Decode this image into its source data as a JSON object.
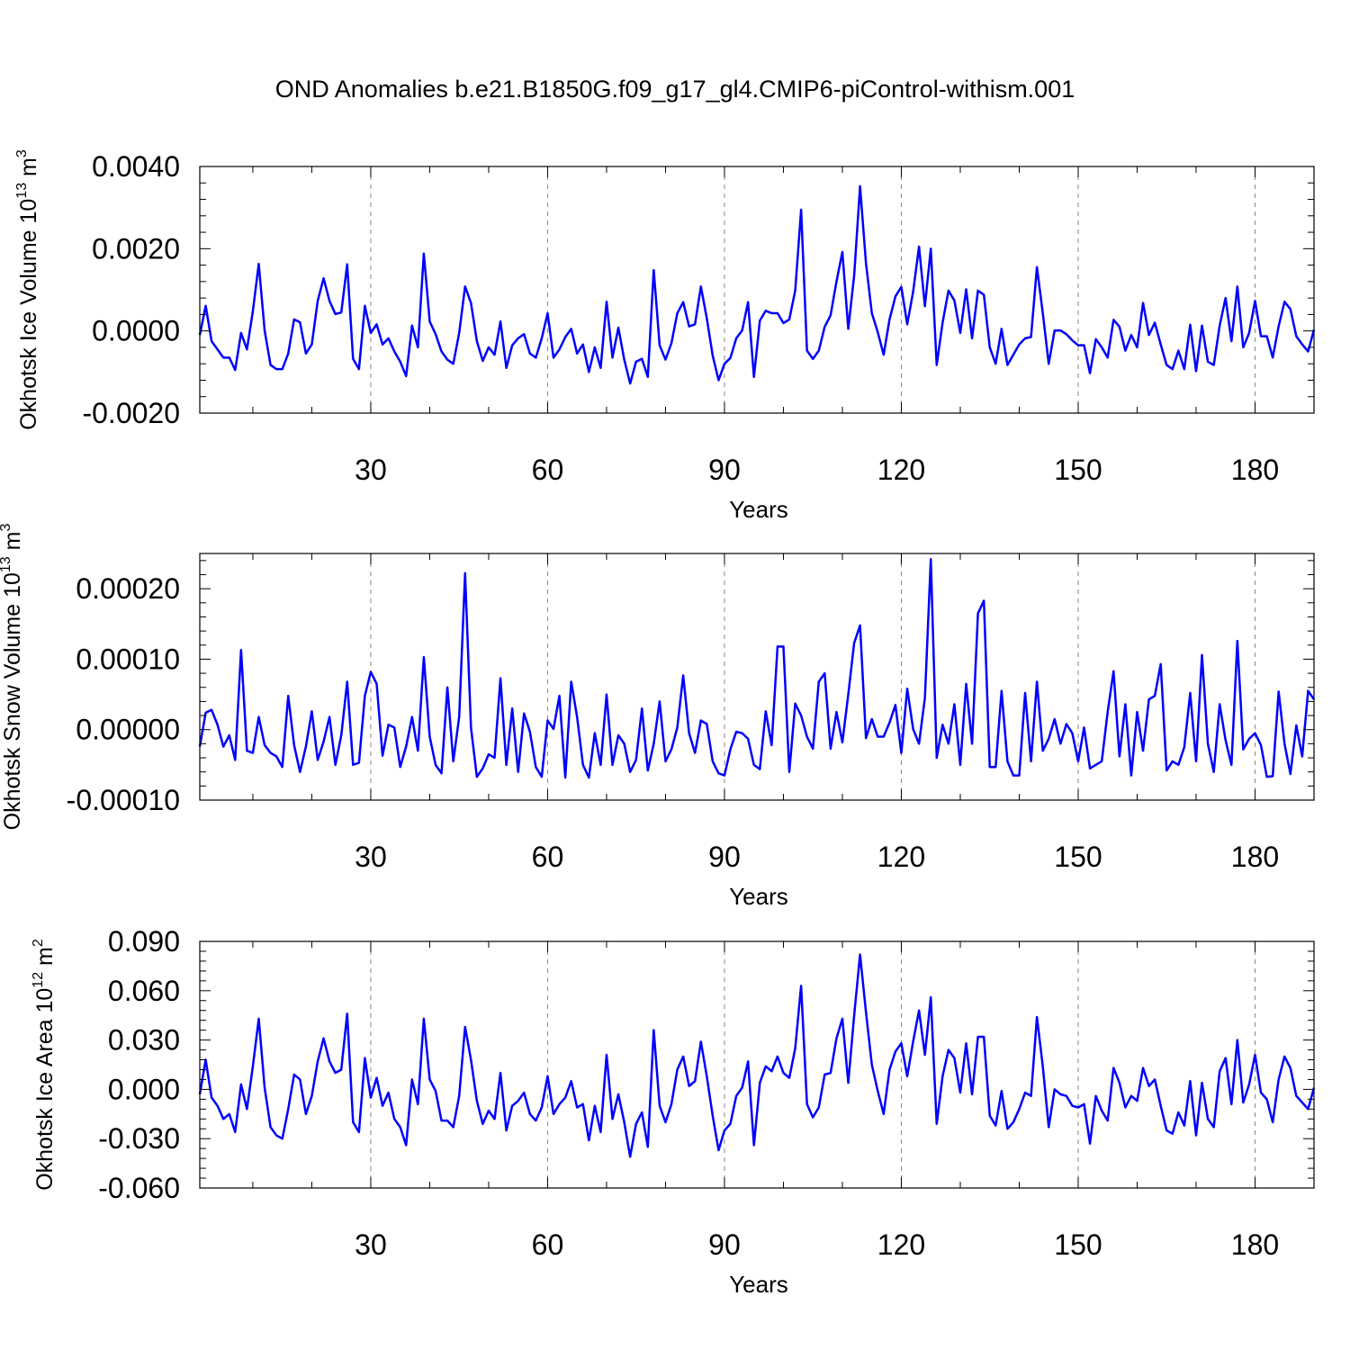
{
  "title": "OND Anomalies b.e21.B1850G.f09_g17_gl4.CMIP6-piControl-withism.001",
  "colors": {
    "line": "#0000ff",
    "axis": "#000000",
    "grid": "#888888"
  },
  "chart_data": [
    {
      "type": "line",
      "title": "OND Anomalies b.e21.B1850G.f09_g17_gl4.CMIP6-piControl-withism.001",
      "xlabel": "Years",
      "ylabel_main": "Okhotsk Ice Volume 10",
      "ylabel_exp": "13",
      "ylabel_unit": " m",
      "ylabel_unit_exp": "3",
      "xlim": [
        1,
        190
      ],
      "ylim": [
        -0.002,
        0.004
      ],
      "xticks": [
        30,
        60,
        90,
        120,
        150,
        180
      ],
      "xtick_labels": [
        "30",
        "60",
        "90",
        "120",
        "150",
        "180"
      ],
      "yticks": [
        -0.002,
        0.0,
        0.002,
        0.004
      ],
      "ytick_labels": [
        "-0.0020",
        "0.0000",
        "0.0020",
        "0.0040"
      ],
      "grid": "vertical dashed at x ticks",
      "series": [
        {
          "values": [
            -0.0001,
            0.00061,
            -0.00025,
            -0.00045,
            -0.00065,
            -0.00065,
            -0.00095,
            -5e-05,
            -0.00045,
            0.00048,
            0.00163,
            1e-05,
            -0.00083,
            -0.00093,
            -0.00093,
            -0.00055,
            0.00028,
            0.00021,
            -0.00055,
            -0.00033,
            0.00073,
            0.00128,
            0.00073,
            0.00041,
            0.00045,
            0.00162,
            -0.00068,
            -0.00093,
            0.00061,
            -5e-05,
            0.00016,
            -0.00033,
            -0.00018,
            -0.0005,
            -0.00075,
            -0.0011,
            0.00013,
            -0.0004,
            0.00188,
            0.00023,
            -8e-05,
            -0.0005,
            -0.0007,
            -0.0008,
            -5e-05,
            0.00108,
            0.00068,
            -0.00025,
            -0.00073,
            -0.0004,
            -0.00058,
            0.00023,
            -0.0009,
            -0.00035,
            -0.00018,
            -8e-05,
            -0.00055,
            -0.00065,
            -0.00018,
            0.00043,
            -0.00065,
            -0.00045,
            -0.00015,
            5e-05,
            -0.00055,
            -0.00033,
            -0.001,
            -0.0004,
            -0.0009,
            0.00071,
            -0.00065,
            8e-05,
            -0.0007,
            -0.00128,
            -0.00075,
            -0.00068,
            -0.00112,
            0.00148,
            -0.00035,
            -0.0007,
            -0.0003,
            0.00043,
            0.0007,
            0.00011,
            0.00016,
            0.00108,
            0.00031,
            -0.0006,
            -0.0012,
            -0.0008,
            -0.00066,
            -0.00018,
            1e-05,
            0.0007,
            -0.00112,
            0.00025,
            0.00049,
            0.00043,
            0.00043,
            0.00019,
            0.00028,
            0.00098,
            0.00295,
            -0.00048,
            -0.00068,
            -0.00048,
            0.0001,
            0.00038,
            0.0012,
            0.00192,
            5e-05,
            0.00135,
            0.00352,
            0.00165,
            0.00043,
            -3e-05,
            -0.00058,
            0.00028,
            0.00084,
            0.00107,
            0.00016,
            0.00095,
            0.00205,
            0.0006,
            0.002,
            -0.00083,
            0.0002,
            0.00098,
            0.00074,
            -5e-05,
            0.00101,
            -0.00018,
            0.00098,
            0.00088,
            -0.0004,
            -0.0008,
            5e-05,
            -0.00083,
            -0.00058,
            -0.00033,
            -0.00018,
            -0.00015,
            0.00155,
            0.00043,
            -0.0008,
            1e-05,
            1e-05,
            -8e-05,
            -0.00023,
            -0.00035,
            -0.00035,
            -0.00103,
            -0.0002,
            -0.0004,
            -0.00065,
            0.00027,
            0.0001,
            -0.00048,
            -0.0001,
            -0.0004,
            0.00068,
            -0.0001,
            0.0002,
            -0.00033,
            -0.00083,
            -0.00093,
            -0.00048,
            -0.00093,
            0.00015,
            -0.00098,
            0.00013,
            -0.00075,
            -0.00083,
            0.00013,
            0.0008,
            -0.00025,
            0.00108,
            -0.0004,
            -5e-05,
            0.00073,
            -0.00013,
            -0.00013,
            -0.00065,
            0.00011,
            0.00071,
            0.00053,
            -0.00013,
            -0.00033,
            -0.0005,
            3e-05
          ]
        }
      ]
    },
    {
      "type": "line",
      "xlabel": "Years",
      "ylabel_main": "Okhotsk Snow Volume 10",
      "ylabel_exp": "13",
      "ylabel_unit": " m",
      "ylabel_unit_exp": "3",
      "xlim": [
        1,
        190
      ],
      "ylim": [
        -0.0001,
        0.00025
      ],
      "xticks": [
        30,
        60,
        90,
        120,
        150,
        180
      ],
      "xtick_labels": [
        "30",
        "60",
        "90",
        "120",
        "150",
        "180"
      ],
      "yticks": [
        -0.0001,
        0.0,
        0.0001,
        0.0002
      ],
      "ytick_labels": [
        "-0.00010",
        "0.00000",
        "0.00010",
        "0.00020"
      ],
      "grid": "vertical dashed at x ticks",
      "series": [
        {
          "values": [
            -2.4e-05,
            2.4e-05,
            2.8e-05,
            7e-06,
            -2.4e-05,
            -8e-06,
            -4.3e-05,
            0.000113,
            -3e-05,
            -3.3e-05,
            1.8e-05,
            -2.2e-05,
            -3.3e-05,
            -3.8e-05,
            -5.3e-05,
            4.8e-05,
            -2.2e-05,
            -6e-05,
            -2.4e-05,
            2.6e-05,
            -4.3e-05,
            -1.7e-05,
            1.8e-05,
            -5e-05,
            -8e-06,
            6.8e-05,
            -5e-05,
            -4.7e-05,
            4.8e-05,
            8.2e-05,
            6.5e-05,
            -3.7e-05,
            7e-06,
            3e-06,
            -5.3e-05,
            -2.4e-05,
            1.8e-05,
            -3e-05,
            0.000103,
            -1e-05,
            -5e-05,
            -6.2e-05,
            6e-05,
            -4.5e-05,
            1.8e-05,
            0.000222,
            3e-06,
            -6.7e-05,
            -5.5e-05,
            -3.5e-05,
            -4e-05,
            7.3e-05,
            -5e-05,
            3e-05,
            -6e-05,
            2.3e-05,
            -3e-06,
            -5.3e-05,
            -6.7e-05,
            1.3e-05,
            1e-06,
            4.8e-05,
            -6.8e-05,
            6.8e-05,
            1.8e-05,
            -5e-05,
            -6.8e-05,
            -5e-06,
            -5e-05,
            5e-05,
            -5e-05,
            -8e-06,
            -2e-05,
            -6e-05,
            -4.3e-05,
            3e-05,
            -5.8e-05,
            -2e-05,
            4e-05,
            -4.5e-05,
            -2.8e-05,
            3e-06,
            7.7e-05,
            -5e-06,
            -3.3e-05,
            1.3e-05,
            8e-06,
            -4.5e-05,
            -6.2e-05,
            -6.5e-05,
            -2.8e-05,
            -3e-06,
            -5e-06,
            -1.3e-05,
            -5e-05,
            -5.6e-05,
            2.6e-05,
            -2.2e-05,
            0.000118,
            0.000118,
            -6e-05,
            3.7e-05,
            2e-05,
            -1e-05,
            -2.7e-05,
            6.8e-05,
            8e-05,
            -2.7e-05,
            2.5e-05,
            -1.8e-05,
            5e-05,
            0.000123,
            0.000148,
            -1.2e-05,
            1.5e-05,
            -1e-05,
            -1e-05,
            1e-05,
            3.5e-05,
            -3.3e-05,
            5.8e-05,
            1e-06,
            -2e-05,
            4.5e-05,
            0.000242,
            -4e-05,
            7e-06,
            -2e-05,
            3.6e-05,
            -5e-05,
            6.5e-05,
            -2e-05,
            0.000165,
            0.000183,
            -5.3e-05,
            -5.3e-05,
            5.5e-05,
            -4.5e-05,
            -6.5e-05,
            -6.5e-05,
            5.2e-05,
            -4.5e-05,
            6.8e-05,
            -3e-05,
            -1.3e-05,
            1.5e-05,
            -2e-05,
            8e-06,
            -5e-06,
            -4.5e-05,
            3e-06,
            -5.5e-05,
            -5e-05,
            -4.5e-05,
            2.5e-05,
            8.3e-05,
            -3.8e-05,
            3.6e-05,
            -6.5e-05,
            2.5e-05,
            -3e-05,
            4.3e-05,
            4.8e-05,
            9.3e-05,
            -5.8e-05,
            -4.5e-05,
            -5e-05,
            -2.5e-05,
            5.2e-05,
            -4.5e-05,
            0.000106,
            -2e-05,
            -6e-05,
            3.6e-05,
            -1.5e-05,
            -5e-05,
            0.000126,
            -2.8e-05,
            -1.3e-05,
            -5e-06,
            -2.2e-05,
            -6.7e-05,
            -6.6e-05,
            5.4e-05,
            -2e-05,
            -6.3e-05,
            6e-06,
            -3.8e-05,
            5.5e-05,
            4.3e-05
          ]
        }
      ]
    },
    {
      "type": "line",
      "xlabel": "Years",
      "ylabel_main": "Okhotsk Ice Area 10",
      "ylabel_exp": "12",
      "ylabel_unit": " m",
      "ylabel_unit_exp": "2",
      "xlim": [
        1,
        190
      ],
      "ylim": [
        -0.06,
        0.09
      ],
      "xticks": [
        30,
        60,
        90,
        120,
        150,
        180
      ],
      "xtick_labels": [
        "30",
        "60",
        "90",
        "120",
        "150",
        "180"
      ],
      "yticks": [
        -0.06,
        -0.03,
        0.0,
        0.03,
        0.06,
        0.09
      ],
      "ytick_labels": [
        "-0.060",
        "-0.030",
        "0.000",
        "0.030",
        "0.060",
        "0.090"
      ],
      "grid": "vertical dashed at x ticks",
      "series": [
        {
          "values": [
            -0.003,
            0.018,
            -0.005,
            -0.01,
            -0.018,
            -0.015,
            -0.026,
            0.003,
            -0.012,
            0.014,
            0.043,
            0.001,
            -0.023,
            -0.028,
            -0.03,
            -0.012,
            0.009,
            0.006,
            -0.015,
            -0.004,
            0.017,
            0.031,
            0.017,
            0.01,
            0.012,
            0.046,
            -0.02,
            -0.026,
            0.019,
            -0.005,
            0.007,
            -0.01,
            -0.002,
            -0.018,
            -0.023,
            -0.034,
            0.006,
            -0.009,
            0.043,
            0.006,
            -0.001,
            -0.019,
            -0.019,
            -0.023,
            -0.004,
            0.038,
            0.018,
            -0.007,
            -0.021,
            -0.013,
            -0.018,
            0.01,
            -0.025,
            -0.01,
            -0.007,
            -0.002,
            -0.015,
            -0.019,
            -0.011,
            0.008,
            -0.015,
            -0.009,
            -0.005,
            0.005,
            -0.011,
            -0.009,
            -0.031,
            -0.01,
            -0.026,
            0.021,
            -0.018,
            -0.003,
            -0.02,
            -0.041,
            -0.021,
            -0.014,
            -0.035,
            0.036,
            -0.01,
            -0.02,
            -0.009,
            0.012,
            0.02,
            0.002,
            0.005,
            0.029,
            0.008,
            -0.016,
            -0.037,
            -0.025,
            -0.021,
            -0.004,
            0.001,
            0.017,
            -0.034,
            0.004,
            0.014,
            0.011,
            0.02,
            0.01,
            0.007,
            0.025,
            0.063,
            -0.009,
            -0.017,
            -0.011,
            0.009,
            0.01,
            0.031,
            0.043,
            0.004,
            0.045,
            0.082,
            0.047,
            0.015,
            -0.001,
            -0.015,
            0.012,
            0.023,
            0.028,
            0.008,
            0.029,
            0.048,
            0.021,
            0.056,
            -0.021,
            0.008,
            0.024,
            0.019,
            -0.002,
            0.028,
            -0.003,
            0.032,
            0.032,
            -0.016,
            -0.022,
            -0.001,
            -0.024,
            -0.02,
            -0.012,
            -0.002,
            -0.004,
            0.044,
            0.014,
            -0.023,
            0.0,
            -0.003,
            -0.004,
            -0.01,
            -0.011,
            -0.009,
            -0.033,
            -0.004,
            -0.013,
            -0.019,
            0.013,
            0.004,
            -0.011,
            -0.004,
            -0.007,
            0.013,
            0.002,
            0.006,
            -0.01,
            -0.025,
            -0.027,
            -0.014,
            -0.022,
            0.005,
            -0.028,
            0.004,
            -0.018,
            -0.023,
            0.011,
            0.019,
            -0.009,
            0.03,
            -0.008,
            0.003,
            0.021,
            -0.002,
            -0.006,
            -0.02,
            0.006,
            0.02,
            0.013,
            -0.004,
            -0.008,
            -0.012,
            0.001
          ]
        }
      ]
    }
  ]
}
